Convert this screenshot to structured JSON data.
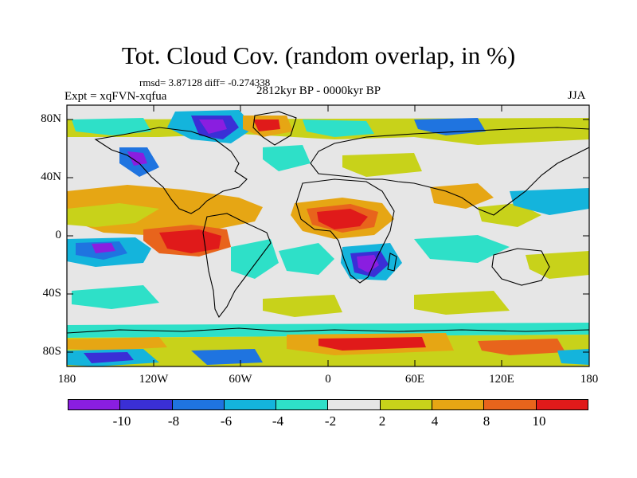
{
  "title": "Tot. Cloud Cov. (random overlap, in %)",
  "stats": "rmsd= 3.87128 diff= -0.274338",
  "experiment": "Expt = xqFVN-xqfua",
  "period": "2812kyr BP - 0000kyr BP",
  "season": "JJA",
  "lat_labels": [
    "80N",
    "40N",
    "0",
    "40S",
    "80S"
  ],
  "lon_labels": [
    "180",
    "120W",
    "60W",
    "0",
    "60E",
    "120E",
    "180"
  ],
  "colorbar": {
    "labels": [
      "-10",
      "-8",
      "-6",
      "-4",
      "-2",
      "2",
      "4",
      "8",
      "10"
    ],
    "colors": [
      "#8a1ee0",
      "#3a2fd6",
      "#1f74e0",
      "#14b4dc",
      "#2ee0c8",
      "#e6e6e6",
      "#c8d21a",
      "#e6a614",
      "#e8641c",
      "#e01a1a"
    ]
  },
  "map_data": {
    "type": "filled contour map",
    "variable": "Tot. Cloud Cov.",
    "units": "%",
    "lon_range": [
      -180,
      180
    ],
    "lat_range": [
      -90,
      90
    ],
    "levels": [
      -10,
      -8,
      -6,
      -4,
      -2,
      2,
      4,
      8,
      10
    ],
    "anomalies": [
      {
        "name": "arctic-negative",
        "lon": -60,
        "lat": 78,
        "value": -10
      },
      {
        "name": "arctic-positive",
        "lon": -25,
        "lat": 78,
        "value": 10
      },
      {
        "name": "east-pacific-positive",
        "lon": -95,
        "lat": 2,
        "value": 10
      },
      {
        "name": "central-pacific-negative",
        "lon": -140,
        "lat": -2,
        "value": -10
      },
      {
        "name": "west-africa-positive",
        "lon": 10,
        "lat": 12,
        "value": 10
      },
      {
        "name": "southern-africa-negative",
        "lon": 25,
        "lat": -15,
        "value": -10
      },
      {
        "name": "southern-ocean-positive",
        "lon": 20,
        "lat": -72,
        "value": 10
      },
      {
        "name": "southern-ocean-negative",
        "lon": -160,
        "lat": -78,
        "value": -8
      }
    ]
  }
}
